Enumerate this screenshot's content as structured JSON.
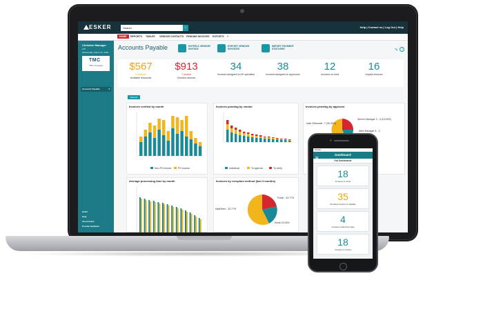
{
  "app": {
    "logo": "ESKER",
    "search_placeholder": "Search",
    "search_button": "›",
    "top_links": "Help | Contact us | Log Out | Help",
    "tabs": [
      "HOME",
      "REPORTS",
      "TABLES",
      "VENDOR CONTACTS",
      "PENDING INVOICES",
      "EXPORTS",
      "+"
    ]
  },
  "sidebar": {
    "user_name": "Christine Manager",
    "role": "A/P",
    "date": "Wednesday, March 21, 2018",
    "company_logo_text": "TMC",
    "company_logo_sub": "TMC Company",
    "profile_select": "Accounts Payable",
    "links": [
      "Hello!",
      "Help",
      "About Esker",
      "Provide feedback"
    ]
  },
  "header": {
    "title": "Accounts Payable",
    "actions": [
      {
        "label": "ENTER A VENDOR INVOICE",
        "icon": "invoice-icon"
      },
      {
        "label": "EXPORT VENDOR INVOICES",
        "icon": "export-icon"
      },
      {
        "label": "IMPORT PAYMENT STATUSES",
        "icon": "import-icon"
      }
    ]
  },
  "kpis": [
    {
      "value": "$567",
      "sub": "2 invoices",
      "label": "Available discounts",
      "color": "#f0a512"
    },
    {
      "value": "$913",
      "sub": "7 invoice",
      "label": "Overdue amount",
      "color": "#d6262e"
    },
    {
      "value": "34",
      "sub": "",
      "label": "Invoices assigned to AP specialist",
      "color": "#1b8a97"
    },
    {
      "value": "38",
      "sub": "",
      "label": "Invoices assigned to approvers",
      "color": "#1b8a97"
    },
    {
      "value": "12",
      "sub": "",
      "label": "Invoices on hold",
      "color": "#1b8a97"
    },
    {
      "value": "16",
      "sub": "",
      "label": "Unpaid invoices",
      "color": "#1b8a97"
    }
  ],
  "refresh_label": "Refresh",
  "cards": {
    "verified_title": "Invoices verified by month",
    "verified_legend": [
      "Non-PO invoice",
      "PO invoice"
    ],
    "pending_vendor_title": "Invoices pending by vendor",
    "pending_vendor_legend": [
      "Individual",
      "To approve",
      "To verify"
    ],
    "pending_approver_title": "Invoices pending by approver",
    "approver_labels": [
      "Steven Manager 3 - 3 (10.00%)",
      "Allen Manager 4 - 3",
      "Kate Otheroatt - 7 (30.00%)"
    ],
    "processing_title": "Average processing time by month",
    "reception_title": "Invoices by reception method (last 3 months)",
    "reception_labels": [
      "Portal - 33.77%",
      "Email 18.18%",
      "MailOther - 33.77%",
      "Fax 13.43%"
    ]
  },
  "colors": {
    "teal": "#1b8a97",
    "yellow": "#f2b51b",
    "red": "#d6262e",
    "dark_teal": "#18323c"
  },
  "phone": {
    "status": "Carrier",
    "title": "Dashboard",
    "subtitle": "Full Dashboards",
    "cards": [
      {
        "value": "18",
        "label": "Invoices to verify",
        "color": "#1b8a97"
      },
      {
        "value": "35",
        "label": "Pending invoices to validate",
        "color": "#f0a512"
      },
      {
        "value": "4",
        "label": "Invoices ordered by date",
        "color": "#1b8a97"
      },
      {
        "value": "18",
        "label": "Invoices to review",
        "color": "#1b8a97"
      }
    ]
  }
}
